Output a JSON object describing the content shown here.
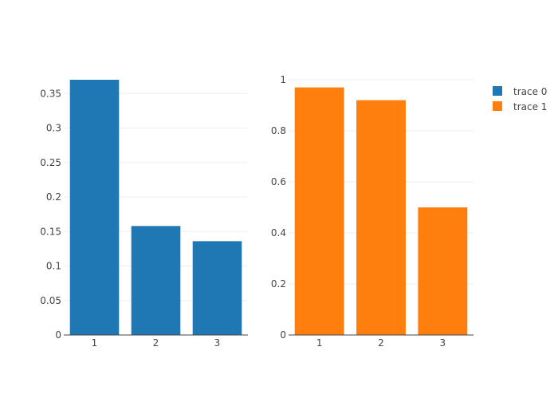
{
  "chart_data": [
    {
      "type": "bar",
      "categories": [
        "1",
        "2",
        "3"
      ],
      "series": [
        {
          "name": "trace 0",
          "values": [
            0.37,
            0.158,
            0.136
          ]
        }
      ],
      "ylim": [
        0,
        0.37
      ],
      "yticks": [
        0,
        0.05,
        0.1,
        0.15,
        0.2,
        0.25,
        0.3,
        0.35
      ],
      "grid": true
    },
    {
      "type": "bar",
      "categories": [
        "1",
        "2",
        "3"
      ],
      "series": [
        {
          "name": "trace 1",
          "values": [
            0.97,
            0.92,
            0.5
          ]
        }
      ],
      "ylim": [
        0,
        1
      ],
      "yticks": [
        0,
        0.2,
        0.4,
        0.6,
        0.8,
        1
      ],
      "grid": true
    }
  ],
  "legend": {
    "position": "top-right",
    "items": [
      {
        "label": "trace 0",
        "color": "#1f77b4"
      },
      {
        "label": "trace 1",
        "color": "#ff7f0e"
      }
    ]
  },
  "colors": {
    "trace0": "#1f77b4",
    "trace1": "#ff7f0e",
    "grid": "#eeeeee",
    "axis": "#444444"
  }
}
